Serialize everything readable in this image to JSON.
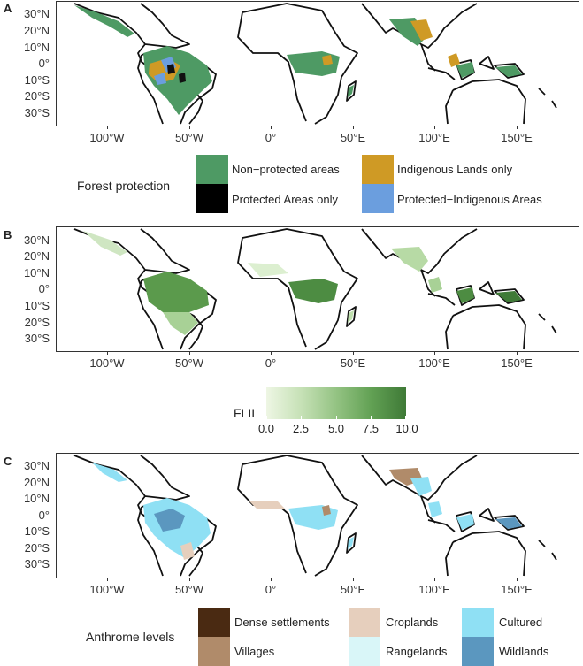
{
  "panels": [
    {
      "letter": "A",
      "y_labels": [
        "30°N",
        "20°N",
        "10°N",
        "0°",
        "10°S",
        "20°S",
        "30°S"
      ],
      "x_labels": [
        "100°W",
        "50°W",
        "0°",
        "50°E",
        "100°E",
        "150°E"
      ],
      "legend": {
        "title": "Forest protection",
        "items": [
          {
            "label": "Non−protected areas",
            "color": "#4e9a64"
          },
          {
            "label": "Indigenous Lands only",
            "color": "#cf9a25"
          },
          {
            "label": "Protected Areas only",
            "color": "#000000"
          },
          {
            "label": "Protected−Indigenous Areas",
            "color": "#6b9ede"
          }
        ]
      }
    },
    {
      "letter": "B",
      "y_labels": [
        "30°N",
        "20°N",
        "10°N",
        "0°",
        "10°S",
        "20°S",
        "30°S"
      ],
      "x_labels": [
        "100°W",
        "50°W",
        "0°",
        "50°E",
        "100°E",
        "150°E"
      ],
      "legend": {
        "title": "FLII",
        "ticks": [
          "0.0",
          "2.5",
          "5.0",
          "7.5",
          "10.0"
        ],
        "color_low": "#eef6e4",
        "color_high": "#3f7a37"
      }
    },
    {
      "letter": "C",
      "y_labels": [
        "30°N",
        "20°N",
        "10°N",
        "0°",
        "10°S",
        "20°S",
        "30°S"
      ],
      "x_labels": [
        "100°W",
        "50°W",
        "0°",
        "50°E",
        "100°E",
        "150°E"
      ],
      "legend": {
        "title": "Anthrome levels",
        "items": [
          {
            "label": "Dense settlements",
            "color": "#4a2a12"
          },
          {
            "label": "Croplands",
            "color": "#e6cfbd"
          },
          {
            "label": "Cultured",
            "color": "#8fe0f4"
          },
          {
            "label": "Villages",
            "color": "#b08b6a"
          },
          {
            "label": "Rangelands",
            "color": "#d9f6f8"
          },
          {
            "label": "Wildlands",
            "color": "#5b97bf"
          }
        ]
      }
    }
  ]
}
